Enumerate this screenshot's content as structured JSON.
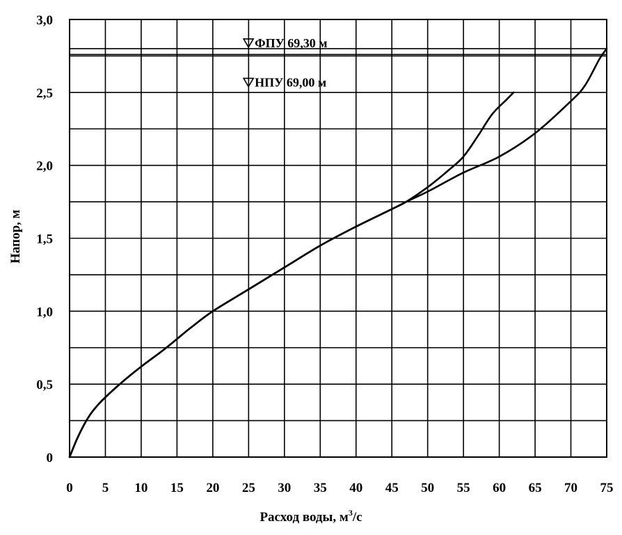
{
  "chart_data": {
    "type": "line",
    "xlabel": "Расход воды, м",
    "xlabel_sup": "3",
    "xlabel_suffix": "/с",
    "ylabel": "Напор, м",
    "xlim": [
      0,
      75
    ],
    "ylim": [
      0,
      3.0
    ],
    "grid": true,
    "x_ticks": [
      {
        "value": 0,
        "label": "0"
      },
      {
        "value": 5,
        "label": "5"
      },
      {
        "value": 10,
        "label": "10"
      },
      {
        "value": 15,
        "label": "15"
      },
      {
        "value": 20,
        "label": "20"
      },
      {
        "value": 25,
        "label": "25"
      },
      {
        "value": 30,
        "label": "30"
      },
      {
        "value": 35,
        "label": "35"
      },
      {
        "value": 40,
        "label": "40"
      },
      {
        "value": 45,
        "label": "45"
      },
      {
        "value": 50,
        "label": "50"
      },
      {
        "value": 55,
        "label": "55"
      },
      {
        "value": 60,
        "label": "60"
      },
      {
        "value": 65,
        "label": "65"
      },
      {
        "value": 70,
        "label": "70"
      },
      {
        "value": 75,
        "label": "75"
      }
    ],
    "y_ticks": [
      {
        "value": 0,
        "label": "0"
      },
      {
        "value": 0.5,
        "label": "0,5"
      },
      {
        "value": 1.0,
        "label": "1,0"
      },
      {
        "value": 1.5,
        "label": "1,5"
      },
      {
        "value": 2.0,
        "label": "2,0"
      },
      {
        "value": 2.5,
        "label": "2,5"
      },
      {
        "value": 3.0,
        "label": "3,0"
      }
    ],
    "y_gridlines": [
      0.25,
      0.5,
      0.75,
      1.0,
      1.25,
      1.5,
      1.75,
      2.0,
      2.25,
      2.5,
      2.75,
      3.0
    ],
    "reference_lines": [
      {
        "y": 2.8,
        "label": "ФПУ 69,30 м",
        "marker": "▽",
        "label_x": 24.3
      },
      {
        "y": 2.76,
        "label": "НПУ 69,00 м",
        "marker": "▽",
        "label_x": 24.3,
        "label_y": 2.53
      }
    ],
    "series": [
      {
        "values_xy": [
          [
            0,
            0
          ],
          [
            1,
            0.12
          ],
          [
            2,
            0.22
          ],
          [
            3,
            0.3
          ],
          [
            4,
            0.36
          ],
          [
            5,
            0.41
          ],
          [
            7,
            0.5
          ],
          [
            10,
            0.62
          ],
          [
            13,
            0.73
          ],
          [
            15,
            0.81
          ],
          [
            17,
            0.89
          ],
          [
            20,
            1.0
          ],
          [
            25,
            1.15
          ],
          [
            30,
            1.3
          ],
          [
            35,
            1.45
          ],
          [
            40,
            1.58
          ],
          [
            45,
            1.7
          ],
          [
            47,
            1.75
          ],
          [
            50,
            1.85
          ],
          [
            53,
            1.97
          ],
          [
            55,
            2.06
          ],
          [
            57,
            2.2
          ],
          [
            59,
            2.35
          ],
          [
            61,
            2.45
          ],
          [
            62,
            2.5
          ]
        ]
      },
      {
        "values_xy": [
          [
            0,
            0
          ],
          [
            1,
            0.12
          ],
          [
            2,
            0.22
          ],
          [
            3,
            0.3
          ],
          [
            4,
            0.36
          ],
          [
            5,
            0.41
          ],
          [
            7,
            0.5
          ],
          [
            10,
            0.62
          ],
          [
            13,
            0.73
          ],
          [
            15,
            0.81
          ],
          [
            17,
            0.89
          ],
          [
            20,
            1.0
          ],
          [
            25,
            1.15
          ],
          [
            30,
            1.3
          ],
          [
            35,
            1.45
          ],
          [
            40,
            1.58
          ],
          [
            45,
            1.7
          ],
          [
            47,
            1.75
          ],
          [
            50,
            1.82
          ],
          [
            55,
            1.95
          ],
          [
            60,
            2.06
          ],
          [
            65,
            2.22
          ],
          [
            70,
            2.44
          ],
          [
            72,
            2.55
          ],
          [
            74,
            2.73
          ],
          [
            75,
            2.8
          ]
        ]
      }
    ]
  }
}
